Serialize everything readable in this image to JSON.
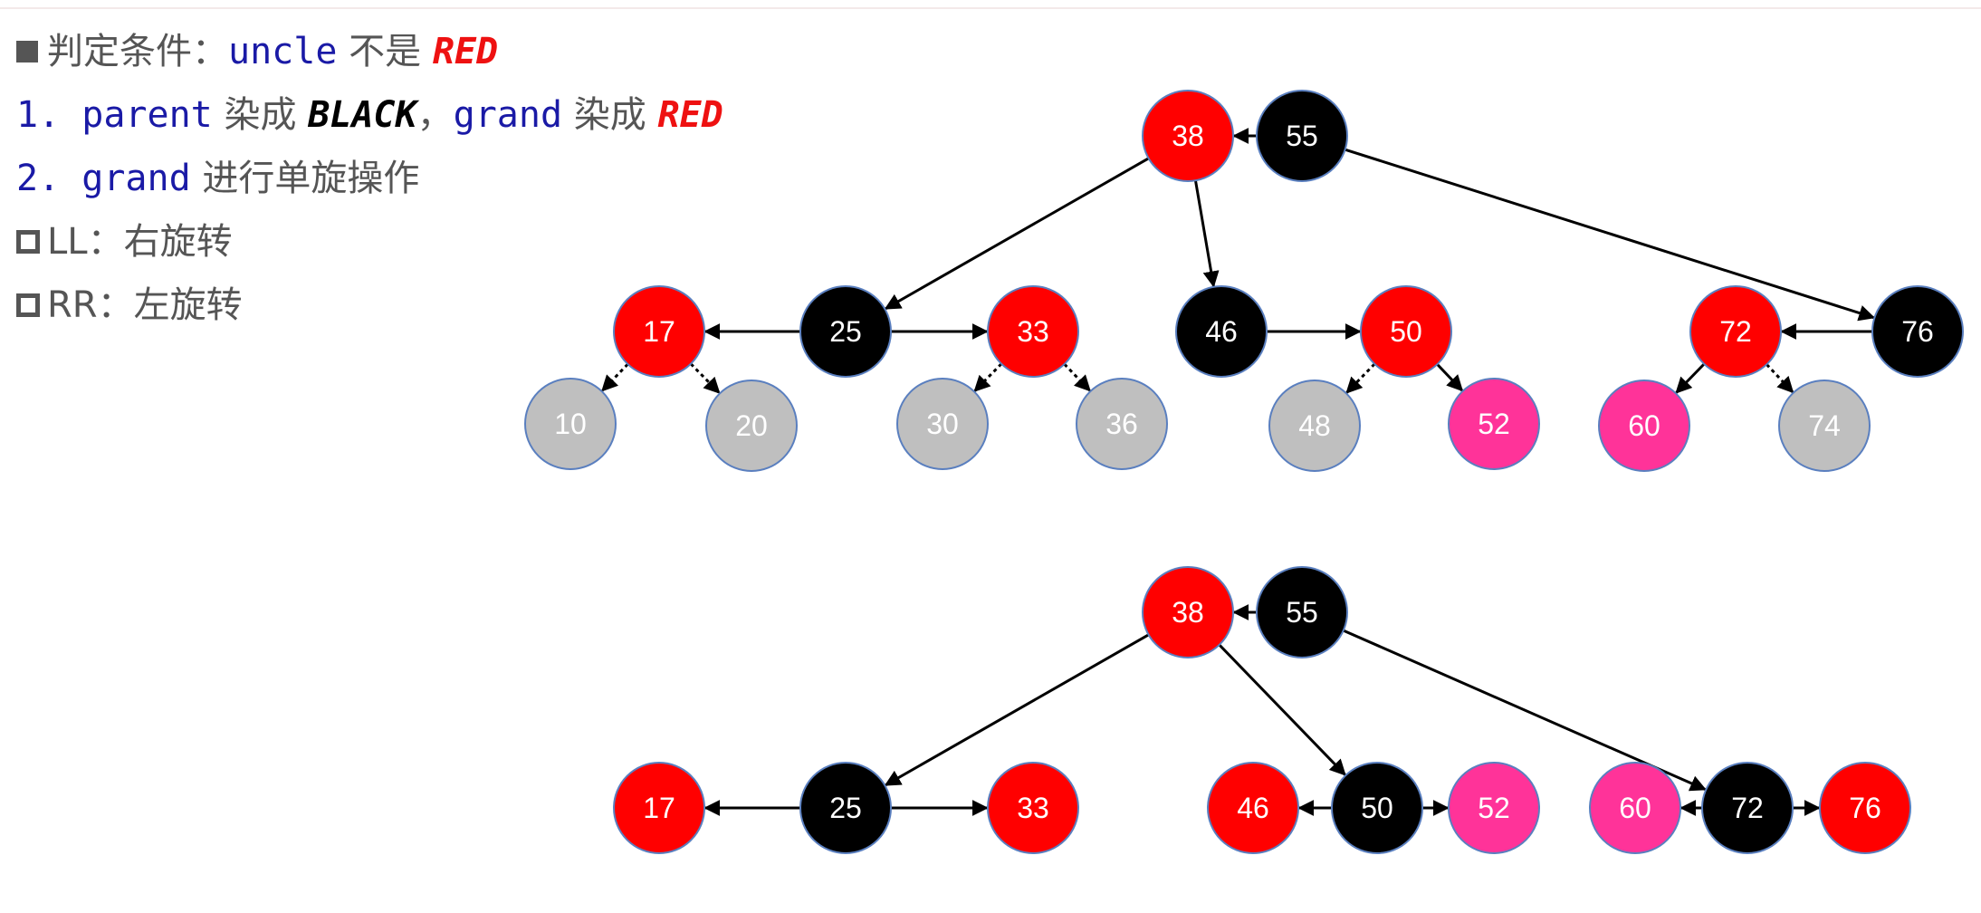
{
  "text": {
    "line1": {
      "prefix": "判定条件：",
      "code": "uncle",
      "mid": " 不是 ",
      "red": "RED"
    },
    "line2": {
      "num": "1. ",
      "code1": "parent",
      "mid1": " 染成 ",
      "black": "BLACK",
      "sep": "，",
      "code2": "grand",
      "mid2": " 染成 ",
      "red": "RED"
    },
    "line3": {
      "num": "2. ",
      "code": "grand",
      "rest": " 进行单旋操作"
    },
    "line4": {
      "text": "LL：右旋转"
    },
    "line5": {
      "text": "RR：左旋转"
    }
  },
  "colors": {
    "red": "#ff0000",
    "black": "#000000",
    "gray": "#bfbfbf",
    "pink": "#ff3399",
    "node_border": "#5a7fbf"
  },
  "diagrams": [
    {
      "nodes": [
        {
          "id": "38",
          "label": "38",
          "color": "red"
        },
        {
          "id": "55",
          "label": "55",
          "color": "black"
        },
        {
          "id": "17",
          "label": "17",
          "color": "red"
        },
        {
          "id": "25",
          "label": "25",
          "color": "black"
        },
        {
          "id": "33",
          "label": "33",
          "color": "red"
        },
        {
          "id": "46",
          "label": "46",
          "color": "black"
        },
        {
          "id": "50",
          "label": "50",
          "color": "red"
        },
        {
          "id": "72",
          "label": "72",
          "color": "red"
        },
        {
          "id": "76",
          "label": "76",
          "color": "black"
        },
        {
          "id": "10",
          "label": "10",
          "color": "gray"
        },
        {
          "id": "20",
          "label": "20",
          "color": "gray"
        },
        {
          "id": "30",
          "label": "30",
          "color": "gray"
        },
        {
          "id": "36",
          "label": "36",
          "color": "gray"
        },
        {
          "id": "48",
          "label": "48",
          "color": "gray"
        },
        {
          "id": "52",
          "label": "52",
          "color": "pink"
        },
        {
          "id": "60",
          "label": "60",
          "color": "pink"
        },
        {
          "id": "74",
          "label": "74",
          "color": "gray"
        }
      ],
      "edges": [
        {
          "from": "55",
          "to": "38",
          "style": "solid"
        },
        {
          "from": "38",
          "to": "25",
          "style": "solid"
        },
        {
          "from": "38",
          "to": "46",
          "style": "solid"
        },
        {
          "from": "55",
          "to": "76",
          "style": "solid"
        },
        {
          "from": "25",
          "to": "17",
          "style": "solid"
        },
        {
          "from": "25",
          "to": "33",
          "style": "solid"
        },
        {
          "from": "46",
          "to": "50",
          "style": "solid"
        },
        {
          "from": "76",
          "to": "72",
          "style": "solid"
        },
        {
          "from": "17",
          "to": "10",
          "style": "dotted"
        },
        {
          "from": "17",
          "to": "20",
          "style": "dotted"
        },
        {
          "from": "33",
          "to": "30",
          "style": "dotted"
        },
        {
          "from": "33",
          "to": "36",
          "style": "dotted"
        },
        {
          "from": "50",
          "to": "48",
          "style": "dotted"
        },
        {
          "from": "50",
          "to": "52",
          "style": "solid"
        },
        {
          "from": "72",
          "to": "60",
          "style": "solid"
        },
        {
          "from": "72",
          "to": "74",
          "style": "dotted"
        }
      ]
    },
    {
      "nodes": [
        {
          "id": "38",
          "label": "38",
          "color": "red"
        },
        {
          "id": "55",
          "label": "55",
          "color": "black"
        },
        {
          "id": "17",
          "label": "17",
          "color": "red"
        },
        {
          "id": "25",
          "label": "25",
          "color": "black"
        },
        {
          "id": "33",
          "label": "33",
          "color": "red"
        },
        {
          "id": "46",
          "label": "46",
          "color": "red"
        },
        {
          "id": "50",
          "label": "50",
          "color": "black"
        },
        {
          "id": "52",
          "label": "52",
          "color": "pink"
        },
        {
          "id": "60",
          "label": "60",
          "color": "pink"
        },
        {
          "id": "72",
          "label": "72",
          "color": "black"
        },
        {
          "id": "76",
          "label": "76",
          "color": "red"
        }
      ],
      "edges": [
        {
          "from": "55",
          "to": "38",
          "style": "solid"
        },
        {
          "from": "38",
          "to": "25",
          "style": "solid"
        },
        {
          "from": "38",
          "to": "50",
          "style": "solid"
        },
        {
          "from": "55",
          "to": "72",
          "style": "solid"
        },
        {
          "from": "25",
          "to": "17",
          "style": "solid"
        },
        {
          "from": "25",
          "to": "33",
          "style": "solid"
        },
        {
          "from": "50",
          "to": "46",
          "style": "solid"
        },
        {
          "from": "50",
          "to": "52",
          "style": "solid"
        },
        {
          "from": "72",
          "to": "60",
          "style": "solid"
        },
        {
          "from": "72",
          "to": "76",
          "style": "solid"
        }
      ]
    }
  ]
}
